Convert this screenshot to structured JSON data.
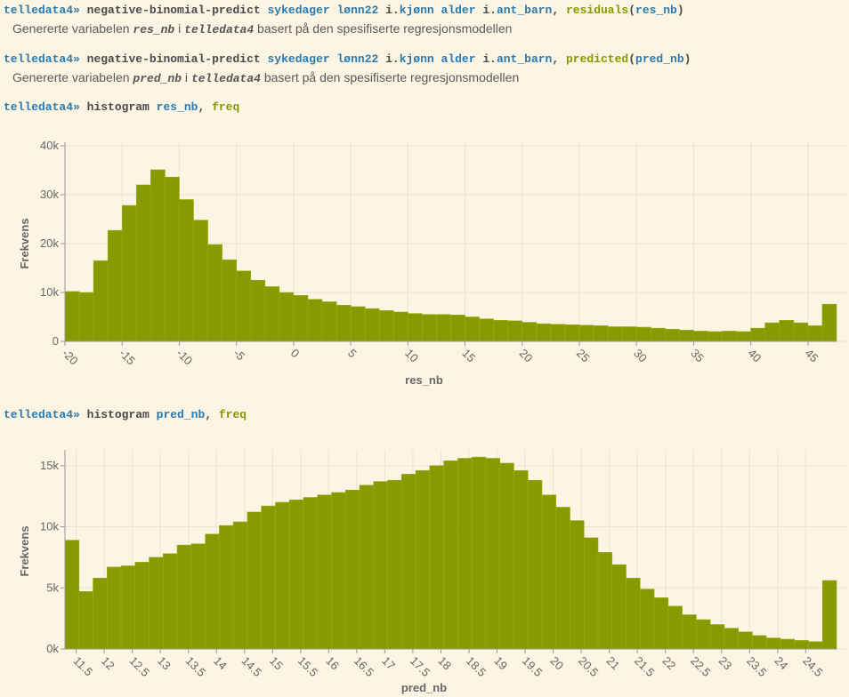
{
  "commands": [
    {
      "prompt": "telledata4»",
      "tokens": [
        {
          "text": "negative-binomial-predict ",
          "color": "#4a4a4a"
        },
        {
          "text": "sykedager ",
          "color": "#2a7ab0"
        },
        {
          "text": "lønn22 ",
          "color": "#2a7ab0"
        },
        {
          "text": "i.",
          "color": "#4a4a4a"
        },
        {
          "text": "kjønn ",
          "color": "#2a7ab0"
        },
        {
          "text": "alder ",
          "color": "#2a7ab0"
        },
        {
          "text": "i.",
          "color": "#4a4a4a"
        },
        {
          "text": "ant_barn",
          "color": "#2a7ab0"
        },
        {
          "text": ", ",
          "color": "#4a4a4a"
        },
        {
          "text": "residuals",
          "color": "#859900"
        },
        {
          "text": "(",
          "color": "#4a4a4a"
        },
        {
          "text": "res_nb",
          "color": "#2a7ab0"
        },
        {
          "text": ")",
          "color": "#4a4a4a"
        }
      ],
      "output": [
        "Genererte variabelen",
        "res_nb",
        "i",
        "telledata4",
        "basert på den spesifiserte regresjonsmodellen"
      ]
    },
    {
      "prompt": "telledata4»",
      "tokens": [
        {
          "text": "negative-binomial-predict ",
          "color": "#4a4a4a"
        },
        {
          "text": "sykedager ",
          "color": "#2a7ab0"
        },
        {
          "text": "lønn22 ",
          "color": "#2a7ab0"
        },
        {
          "text": "i.",
          "color": "#4a4a4a"
        },
        {
          "text": "kjønn ",
          "color": "#2a7ab0"
        },
        {
          "text": "alder ",
          "color": "#2a7ab0"
        },
        {
          "text": "i.",
          "color": "#4a4a4a"
        },
        {
          "text": "ant_barn",
          "color": "#2a7ab0"
        },
        {
          "text": ", ",
          "color": "#4a4a4a"
        },
        {
          "text": "predicted",
          "color": "#859900"
        },
        {
          "text": "(",
          "color": "#4a4a4a"
        },
        {
          "text": "pred_nb",
          "color": "#2a7ab0"
        },
        {
          "text": ")",
          "color": "#4a4a4a"
        }
      ],
      "output": [
        "Genererte variabelen",
        "pred_nb",
        "i",
        "telledata4",
        "basert på den spesifiserte regresjonsmodellen"
      ]
    },
    {
      "prompt": "telledata4»",
      "tokens": [
        {
          "text": "histogram ",
          "color": "#4a4a4a"
        },
        {
          "text": "res_nb",
          "color": "#2a7ab0"
        },
        {
          "text": ", ",
          "color": "#4a4a4a"
        },
        {
          "text": "freq",
          "color": "#859900"
        }
      ]
    },
    {
      "prompt": "telledata4»",
      "tokens": [
        {
          "text": "histogram ",
          "color": "#4a4a4a"
        },
        {
          "text": "pred_nb",
          "color": "#2a7ab0"
        },
        {
          "text": ", ",
          "color": "#4a4a4a"
        },
        {
          "text": "freq",
          "color": "#859900"
        }
      ]
    }
  ],
  "chart_data": [
    {
      "type": "histogram",
      "x_label": "res_nb",
      "y_label": "Frekvens",
      "color": "#879b00",
      "grid": true,
      "bins": [
        -20,
        -18.75,
        -17.5,
        -16.25,
        -15,
        -13.75,
        -12.5,
        -11.25,
        -10,
        -8.75,
        -7.5,
        -6.25,
        -5,
        -3.75,
        -2.5,
        -1.25,
        0,
        1.25,
        2.5,
        3.75,
        5,
        6.25,
        7.5,
        8.75,
        10,
        11.25,
        12.5,
        13.75,
        15,
        16.25,
        17.5,
        18.75,
        20,
        21.25,
        22.5,
        23.75,
        25,
        26.25,
        27.5,
        28.75,
        30,
        31.25,
        32.5,
        33.75,
        35,
        36.25,
        37.5,
        38.75,
        40,
        41.25,
        42.5,
        43.75,
        45,
        46.25,
        47.5
      ],
      "counts": [
        10200,
        10000,
        16500,
        22700,
        27800,
        32000,
        35100,
        33600,
        29000,
        24800,
        19800,
        16700,
        14400,
        12500,
        11200,
        10000,
        9400,
        8600,
        8100,
        7400,
        7100,
        6700,
        6300,
        6000,
        5700,
        5500,
        5500,
        5400,
        5000,
        4600,
        4300,
        4200,
        3900,
        3600,
        3500,
        3400,
        3300,
        3200,
        3000,
        3000,
        2900,
        2700,
        2500,
        2300,
        2100,
        2000,
        2100,
        2000,
        2700,
        3800,
        4300,
        3800,
        3200,
        7600
      ],
      "xlim": [
        -20,
        47.5
      ],
      "xticks": [
        -20,
        -15,
        -10,
        -5,
        0,
        5,
        10,
        15,
        20,
        25,
        30,
        35,
        40,
        45
      ],
      "ylim": [
        0,
        40000
      ],
      "yticks": [
        0,
        {
          "value": 10000,
          "label": "10k"
        },
        {
          "value": 20000,
          "label": "20k"
        },
        {
          "value": 30000,
          "label": "30k"
        },
        {
          "value": 40000,
          "label": "40k"
        }
      ]
    },
    {
      "type": "histogram",
      "x_label": "pred_nb",
      "y_label": "Frekvens",
      "color": "#879b00",
      "grid": true,
      "bins": [
        11.3,
        11.55,
        11.8,
        12.05,
        12.3,
        12.55,
        12.8,
        13.05,
        13.3,
        13.55,
        13.8,
        14.05,
        14.3,
        14.55,
        14.8,
        15.05,
        15.3,
        15.55,
        15.8,
        16.05,
        16.3,
        16.55,
        16.8,
        17.05,
        17.3,
        17.55,
        17.8,
        18.05,
        18.3,
        18.55,
        18.8,
        19.05,
        19.3,
        19.55,
        19.8,
        20.05,
        20.3,
        20.55,
        20.8,
        21.05,
        21.3,
        21.55,
        21.8,
        22.05,
        22.3,
        22.55,
        22.8,
        23.05,
        23.3,
        23.55,
        23.8,
        24.05,
        24.3,
        24.55,
        24.8,
        25.05
      ],
      "counts": [
        8900,
        4700,
        5800,
        6700,
        6800,
        7100,
        7500,
        7800,
        8500,
        8600,
        9400,
        10100,
        10400,
        11200,
        11700,
        12000,
        12200,
        12400,
        12600,
        12800,
        13000,
        13400,
        13700,
        13800,
        14300,
        14600,
        15000,
        15400,
        15600,
        15700,
        15600,
        15200,
        14600,
        13800,
        12600,
        11600,
        10500,
        9100,
        7900,
        6900,
        5800,
        4900,
        4200,
        3500,
        2800,
        2400,
        2000,
        1700,
        1400,
        1100,
        900,
        800,
        700,
        600,
        5600
      ],
      "xlim": [
        11.3,
        25.05
      ],
      "xticks": [
        11.5,
        12,
        12.5,
        13,
        13.5,
        14,
        14.5,
        15,
        15.5,
        16,
        16.5,
        17,
        17.5,
        18,
        18.5,
        19,
        19.5,
        20,
        20.5,
        21,
        21.5,
        22,
        22.5,
        23,
        23.5,
        24,
        24.5
      ],
      "ylim": [
        0,
        16000
      ],
      "yticks": [
        {
          "value": 0,
          "label": "0k"
        },
        {
          "value": 5000,
          "label": "5k"
        },
        {
          "value": 10000,
          "label": "10k"
        },
        {
          "value": 15000,
          "label": "15k"
        }
      ]
    }
  ]
}
